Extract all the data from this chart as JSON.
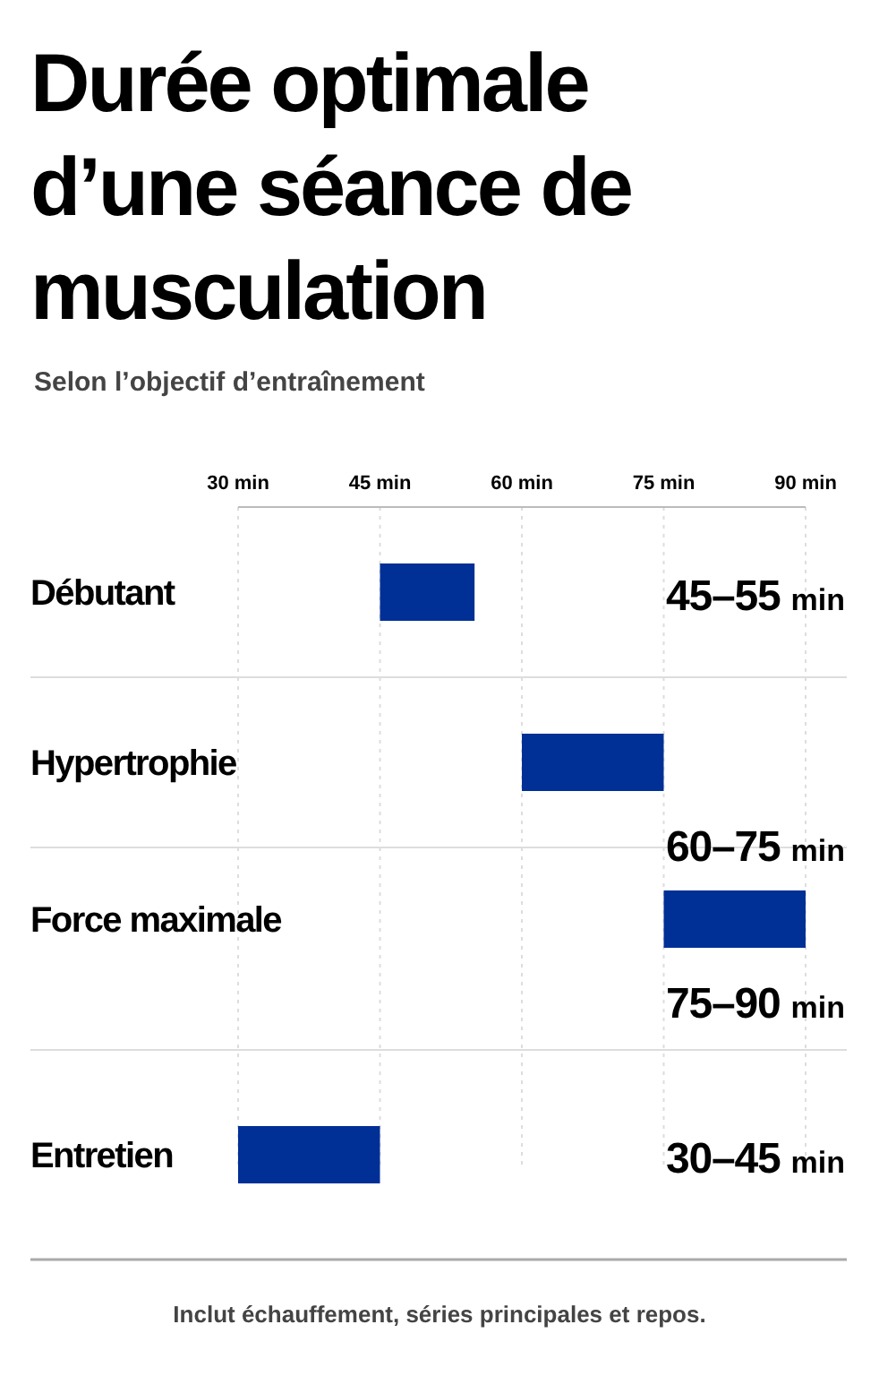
{
  "chart_data": {
    "type": "bar",
    "orientation": "horizontal",
    "title": "Durée optimale d’une séance de musculation",
    "subtitle": "Selon l’objectif d’entraînement",
    "categories": [
      "Débutant",
      "Hypertrophie",
      "Force maximale",
      "Entretien"
    ],
    "base": [
      45,
      60,
      75,
      30
    ],
    "values": [
      10,
      15,
      15,
      15
    ],
    "value_labels": [
      "45–55 min",
      "60–75 min",
      "75–90 min",
      "30–45 min"
    ],
    "color": "#002f96",
    "xlim": [
      30,
      90
    ],
    "xticks": [
      {
        "value": 30,
        "label": "30 min"
      },
      {
        "value": 45,
        "label": "45 min"
      },
      {
        "value": 60,
        "label": "60 min"
      },
      {
        "value": 75,
        "label": "75 min"
      },
      {
        "value": 90,
        "label": "90 min"
      }
    ],
    "grid": "x",
    "annotations": [
      "Inclut échauffement, séries principales et repos."
    ]
  }
}
